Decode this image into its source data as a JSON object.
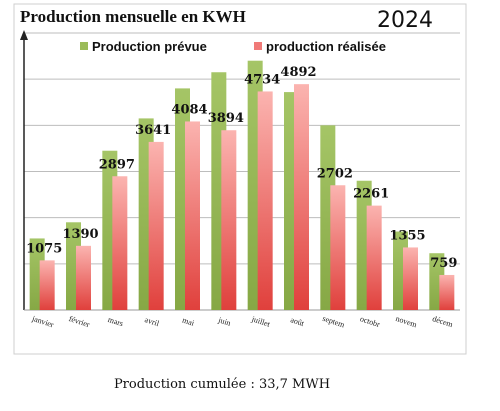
{
  "chart_data": {
    "type": "bar",
    "title": "Production mensuelle en KWH",
    "year": "2024",
    "categories": [
      "janvier",
      "février",
      "mars",
      "avril",
      "mai",
      "juin",
      "juillet",
      "août",
      "septem",
      "octobr",
      "novem",
      "décem"
    ],
    "series": [
      {
        "name": "Production prévue",
        "color": "#9bbb59",
        "values": [
          1550,
          1900,
          3450,
          4150,
          4800,
          5150,
          5400,
          4720,
          4000,
          2800,
          1700,
          1230
        ]
      },
      {
        "name": "production réalisée",
        "color": "#f07a78",
        "values": [
          1075,
          1390,
          2897,
          3641,
          4084,
          3894,
          4734,
          4892,
          2702,
          2261,
          1355,
          759
        ]
      }
    ],
    "data_labels": [
      "1075",
      "1390",
      "2897",
      "3641",
      "4084",
      "3894",
      "4734",
      "4892",
      "2702",
      "2261",
      "1355",
      "759"
    ],
    "ylim": [
      0,
      6000
    ],
    "grid": true,
    "legend_position": "top",
    "xlabel": "",
    "ylabel": ""
  },
  "caption": "Production cumulée : 33,7 MWH"
}
